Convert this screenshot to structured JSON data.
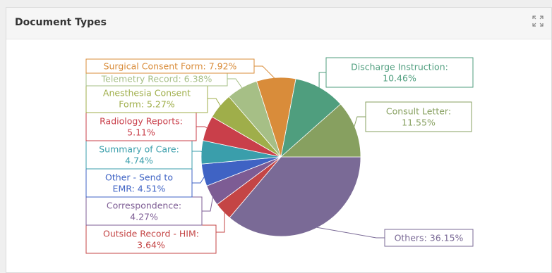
{
  "panel": {
    "title": "Document Types",
    "expand_icon": "expand-arrows-icon"
  },
  "chart_data": {
    "type": "pie",
    "title": "",
    "slices": [
      {
        "label": "Others",
        "value": 36.15,
        "color": "#7a6a96",
        "text": [
          "Others: 36.15%"
        ]
      },
      {
        "label": "Outside Record - HIM",
        "value": 3.64,
        "color": "#c44545",
        "text": [
          "Outside Record - HIM:",
          "3.64%"
        ]
      },
      {
        "label": "Correspondence",
        "value": 4.27,
        "color": "#7d5c94",
        "text": [
          "Correspondence:",
          "4.27%"
        ]
      },
      {
        "label": "Other - Send to EMR",
        "value": 4.51,
        "color": "#3f63c4",
        "text": [
          "Other - Send to",
          "EMR: 4.51%"
        ]
      },
      {
        "label": "Summary of Care",
        "value": 4.74,
        "color": "#3a9eab",
        "text": [
          "Summary of Care:",
          "4.74%"
        ]
      },
      {
        "label": "Radiology Reports",
        "value": 5.11,
        "color": "#c93f4a",
        "text": [
          "Radiology Reports:",
          "5.11%"
        ]
      },
      {
        "label": "Anesthesia Consent Form",
        "value": 5.27,
        "color": "#9fae4a",
        "text": [
          "Anesthesia Consent",
          "Form: 5.27%"
        ]
      },
      {
        "label": "Telemetry Record",
        "value": 6.38,
        "color": "#a6bf86",
        "text": [
          "Telemetry Record: 6.38%"
        ]
      },
      {
        "label": "Surgical Consent Form",
        "value": 7.92,
        "color": "#d98c3a",
        "text": [
          "Surgical Consent Form: 7.92%"
        ]
      },
      {
        "label": "Discharge Instruction",
        "value": 10.46,
        "color": "#4f9e7e",
        "text": [
          "Discharge Instruction:",
          "10.46%"
        ]
      },
      {
        "label": "Consult Letter",
        "value": 11.55,
        "color": "#87a060",
        "text": [
          "Consult Letter:",
          "11.55%"
        ]
      }
    ]
  }
}
